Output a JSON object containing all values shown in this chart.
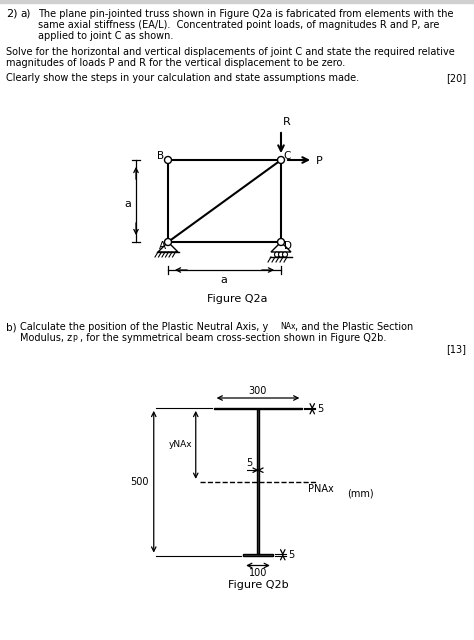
{
  "page_bg": "#ffffff",
  "header_text": "2)",
  "part_a_text_line1": "The plane pin-jointed truss shown in Figure Q2a is fabricated from elements with the",
  "part_a_text_line2": "same axial stiffness (EA/L).  Concentrated point loads, of magnitudes R and P, are",
  "part_a_text_line3": "applied to joint C as shown.",
  "solve_text_line1": "Solve for the horizontal and vertical displacements of joint C and state the required relative",
  "solve_text_line2": "magnitudes of loads P and R for the vertical displacement to be zero.",
  "clearly_text": "Clearly show the steps in your calculation and state assumptions made.",
  "marks_a": "[20]",
  "fig_q2a_label": "Figure Q2a",
  "part_b_text_line1": "Calculate the position of the Plastic Neutral Axis, y",
  "part_b_text_line1b": "NAx",
  "part_b_text_line1c": ", and the Plastic Section",
  "part_b_text_line2": "Modulus, z",
  "part_b_text_line2b": "p",
  "part_b_text_line2c": ", for the symmetrical beam cross-section shown in Figure Q2b.",
  "marks_b": "[13]",
  "fig_q2b_label": "Figure Q2b"
}
